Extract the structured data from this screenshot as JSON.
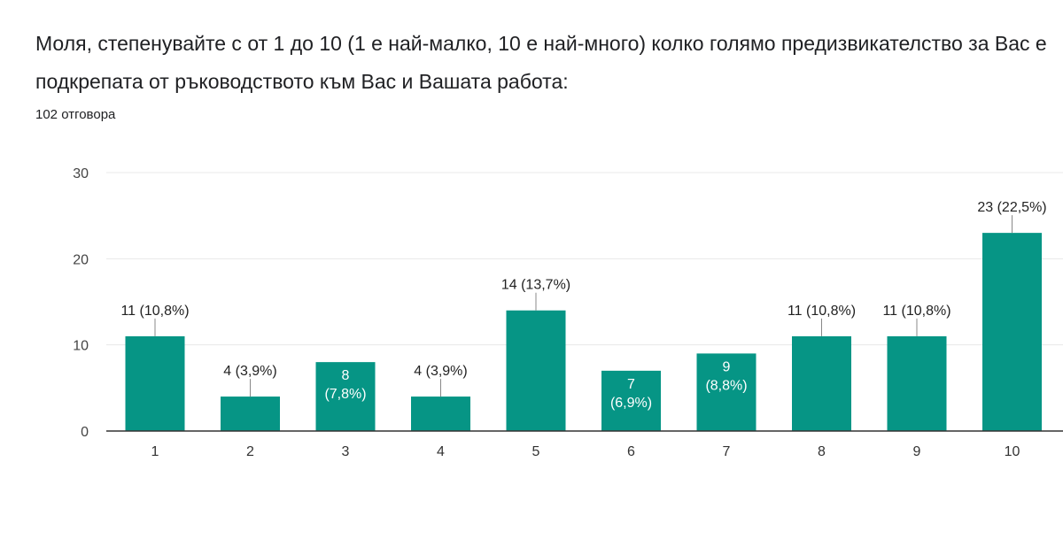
{
  "header": {
    "question": "Моля, степенувайте с от 1 до 10 (1 е най-малко, 10 е най-много) колко голямо предизвикателство за Вас е подкрепата от ръководството към Вас и Вашата работа:",
    "responses": "102 отговора"
  },
  "colors": {
    "bar": "#069585",
    "grid": "#e8e8e8",
    "axis": "#333333",
    "leader": "#888888"
  },
  "chart_data": {
    "type": "bar",
    "categories": [
      "1",
      "2",
      "3",
      "4",
      "5",
      "6",
      "7",
      "8",
      "9",
      "10"
    ],
    "values": [
      11,
      4,
      8,
      4,
      14,
      7,
      9,
      11,
      11,
      23
    ],
    "data_labels": [
      "11 (10,8%)",
      "4 (3,9%)",
      "8 (7,8%)",
      "4 (3,9%)",
      "14 (13,7%)",
      "7 (6,9%)",
      "9 (8,8%)",
      "11 (10,8%)",
      "11 (10,8%)",
      "23 (22,5%)"
    ],
    "label_inside": [
      false,
      false,
      true,
      false,
      false,
      true,
      true,
      false,
      false,
      false
    ],
    "ylim": [
      0,
      30
    ],
    "yticks": [
      0,
      10,
      20,
      30
    ],
    "grid": true,
    "xlabel": "",
    "ylabel": ""
  }
}
